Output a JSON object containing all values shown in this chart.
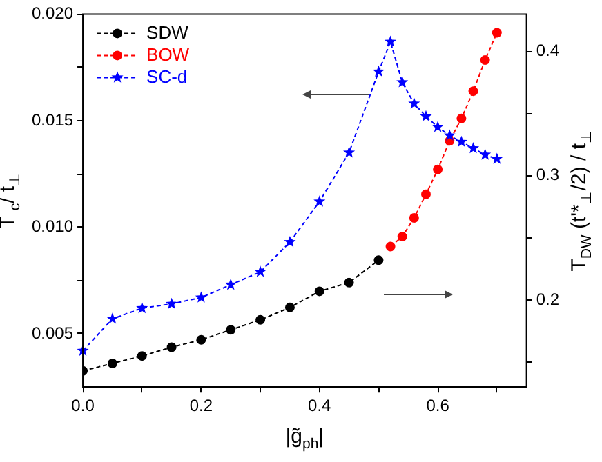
{
  "chart_data": {
    "type": "line",
    "xlabel": "|g̃$_{ph}$|",
    "ylabel": "T$^{*}$$_{c}$/ t$_{⊥}$",
    "y2label": "T$_{DW}$ (t'*$_{⊥}$/2) / t$_{⊥}$",
    "xlim": [
      0,
      0.75
    ],
    "xticks": [
      {
        "value": 0,
        "label": "0.0"
      },
      {
        "value": 0.1,
        "label": null
      },
      0.2,
      {
        "value": 0.3,
        "label": null
      },
      0.4,
      {
        "value": 0.5,
        "label": null
      },
      0.6,
      {
        "value": 0.7,
        "label": null
      }
    ],
    "ylim": [
      0.0025,
      0.02
    ],
    "yticks": [
      0.005,
      {
        "value": 0.0075,
        "label": null
      },
      {
        "value": 0.01,
        "label": "0.010"
      },
      {
        "value": 0.0125,
        "label": null
      },
      0.015,
      {
        "value": 0.0175,
        "label": null
      },
      {
        "value": 0.02,
        "label": "0.020"
      }
    ],
    "y2lim": [
      0.13,
      0.43
    ],
    "y2ticks": [
      {
        "value": 0.15,
        "label": null
      },
      0.2,
      {
        "value": 0.25,
        "label": null
      },
      0.3,
      {
        "value": 0.35,
        "label": null
      },
      0.4
    ],
    "grid": false,
    "legend": "top left",
    "line_style": "dashed",
    "series": [
      {
        "name": "SDW",
        "color": "#000000",
        "axis": "y2",
        "marker": "circle",
        "x": [
          0,
          0.05,
          0.1,
          0.15,
          0.2,
          0.25,
          0.3,
          0.35,
          0.4,
          0.45,
          0.5
        ],
        "values": [
          0.143,
          0.149,
          0.155,
          0.162,
          0.168,
          0.176,
          0.184,
          0.194,
          0.207,
          0.214,
          0.232
        ]
      },
      {
        "name": "BOW",
        "color": "#ff0000",
        "axis": "y2",
        "marker": "circle",
        "x": [
          0.52,
          0.54,
          0.56,
          0.58,
          0.6,
          0.62,
          0.64,
          0.66,
          0.68,
          0.7
        ],
        "values": [
          0.243,
          0.251,
          0.266,
          0.285,
          0.305,
          0.328,
          0.346,
          0.368,
          0.393,
          0.415
        ]
      },
      {
        "name": "SC-d",
        "color": "#0000ff",
        "axis": "y",
        "marker": "star",
        "x": [
          0,
          0.05,
          0.1,
          0.15,
          0.2,
          0.25,
          0.3,
          0.35,
          0.4,
          0.45,
          0.5,
          0.52,
          0.54,
          0.56,
          0.58,
          0.6,
          0.62,
          0.64,
          0.66,
          0.68,
          0.7
        ],
        "values": [
          0.0042,
          0.0057,
          0.0062,
          0.0064,
          0.0067,
          0.0073,
          0.0079,
          0.0093,
          0.0112,
          0.0135,
          0.0173,
          0.0187,
          0.0168,
          0.0158,
          0.0152,
          0.0147,
          0.0143,
          0.014,
          0.0137,
          0.0134,
          0.0132
        ]
      }
    ]
  }
}
